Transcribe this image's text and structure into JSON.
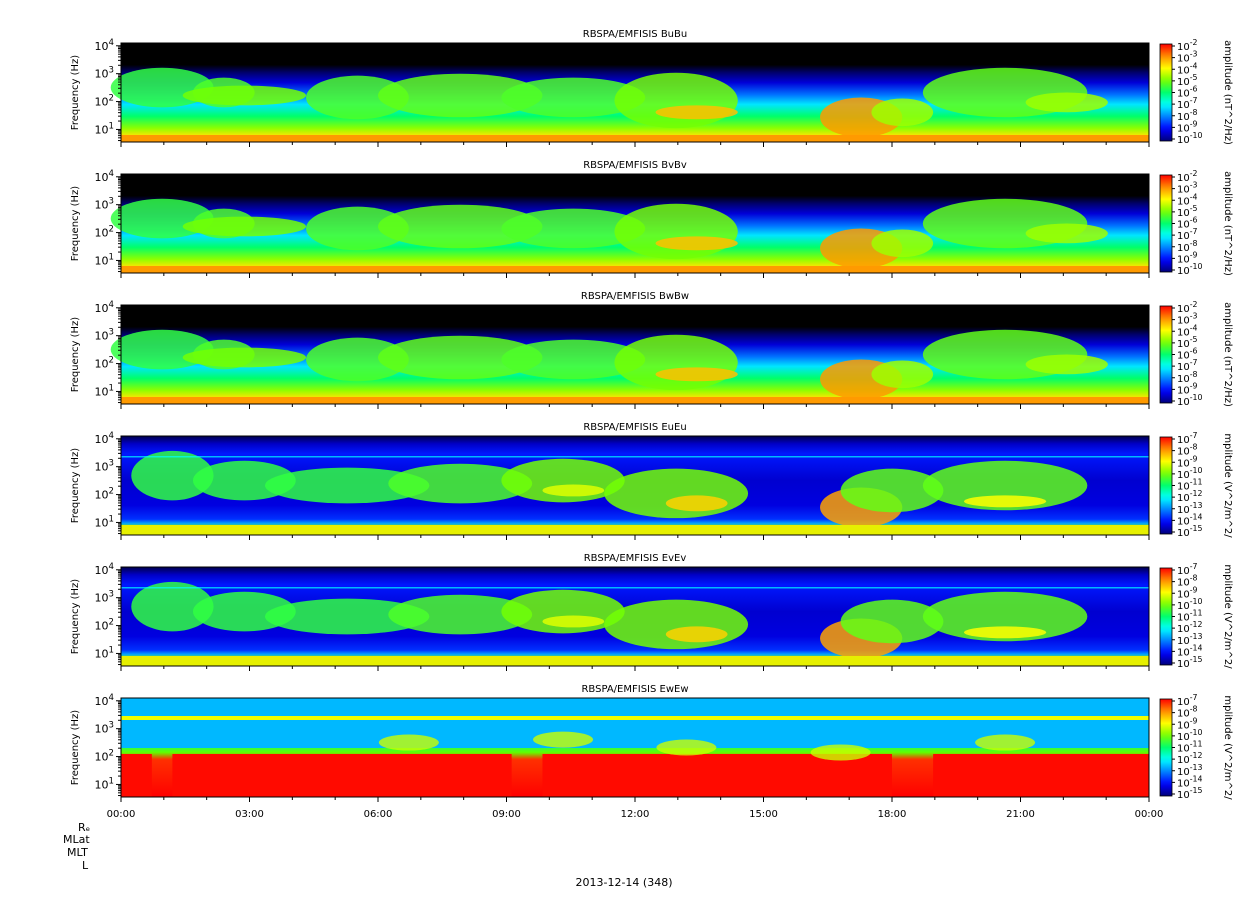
{
  "figure": {
    "date_label": "2013-12-14 (348)",
    "footer_rows": [
      "Rₑ",
      "MLat",
      "MLT",
      "L"
    ]
  },
  "chart_data": [
    {
      "type": "heatmap",
      "title": "RBSPA/EMFISIS  BuBu",
      "ylabel": "Frequency (Hz)",
      "y_scale": "log",
      "y_ticks": [
        "10^1",
        "10^2",
        "10^3",
        "10^4"
      ],
      "colorbar": {
        "label": "amplitude (nT^2/Hz)",
        "scale": "log",
        "ticks": [
          "10^-2",
          "10^-3",
          "10^-4",
          "10^-5",
          "10^-6",
          "10^-7",
          "10^-8",
          "10^-9",
          "10^-10"
        ]
      }
    },
    {
      "type": "heatmap",
      "title": "RBSPA/EMFISIS  BvBv",
      "ylabel": "Frequency (Hz)",
      "y_scale": "log",
      "y_ticks": [
        "10^1",
        "10^2",
        "10^3",
        "10^4"
      ],
      "colorbar": {
        "label": "amplitude (nT^2/Hz)",
        "scale": "log",
        "ticks": [
          "10^-2",
          "10^-3",
          "10^-4",
          "10^-5",
          "10^-6",
          "10^-7",
          "10^-8",
          "10^-9",
          "10^-10"
        ]
      }
    },
    {
      "type": "heatmap",
      "title": "RBSPA/EMFISIS  BwBw",
      "ylabel": "Frequency (Hz)",
      "y_scale": "log",
      "y_ticks": [
        "10^1",
        "10^2",
        "10^3",
        "10^4"
      ],
      "colorbar": {
        "label": "amplitude (nT^2/Hz)",
        "scale": "log",
        "ticks": [
          "10^-2",
          "10^-3",
          "10^-4",
          "10^-5",
          "10^-6",
          "10^-7",
          "10^-8",
          "10^-9",
          "10^-10"
        ]
      }
    },
    {
      "type": "heatmap",
      "title": "RBSPA/EMFISIS  EuEu",
      "ylabel": "Frequency (Hz)",
      "y_scale": "log",
      "y_ticks": [
        "10^1",
        "10^2",
        "10^3",
        "10^4"
      ],
      "colorbar": {
        "label": "mplitude (V^2/m^2/",
        "scale": "log",
        "ticks": [
          "10^-7",
          "10^-8",
          "10^-9",
          "10^-10",
          "10^-11",
          "10^-12",
          "10^-13",
          "10^-14",
          "10^-15"
        ]
      }
    },
    {
      "type": "heatmap",
      "title": "RBSPA/EMFISIS  EvEv",
      "ylabel": "Frequency (Hz)",
      "y_scale": "log",
      "y_ticks": [
        "10^1",
        "10^2",
        "10^3",
        "10^4"
      ],
      "colorbar": {
        "label": "mplitude (V^2/m^2/",
        "scale": "log",
        "ticks": [
          "10^-7",
          "10^-8",
          "10^-9",
          "10^-10",
          "10^-11",
          "10^-12",
          "10^-13",
          "10^-14",
          "10^-15"
        ]
      }
    },
    {
      "type": "heatmap",
      "title": "RBSPA/EMFISIS  EwEw",
      "ylabel": "Frequency (Hz)",
      "y_scale": "log",
      "y_ticks": [
        "10^1",
        "10^2",
        "10^3",
        "10^4"
      ],
      "x_ticks": [
        "00:00",
        "03:00",
        "06:00",
        "09:00",
        "12:00",
        "15:00",
        "18:00",
        "21:00",
        "00:00"
      ],
      "colorbar": {
        "label": "mplitude (V^2/m^2/",
        "scale": "log",
        "ticks": [
          "10^-7",
          "10^-8",
          "10^-9",
          "10^-10",
          "10^-11",
          "10^-12",
          "10^-13",
          "10^-14",
          "10^-15"
        ]
      }
    }
  ]
}
